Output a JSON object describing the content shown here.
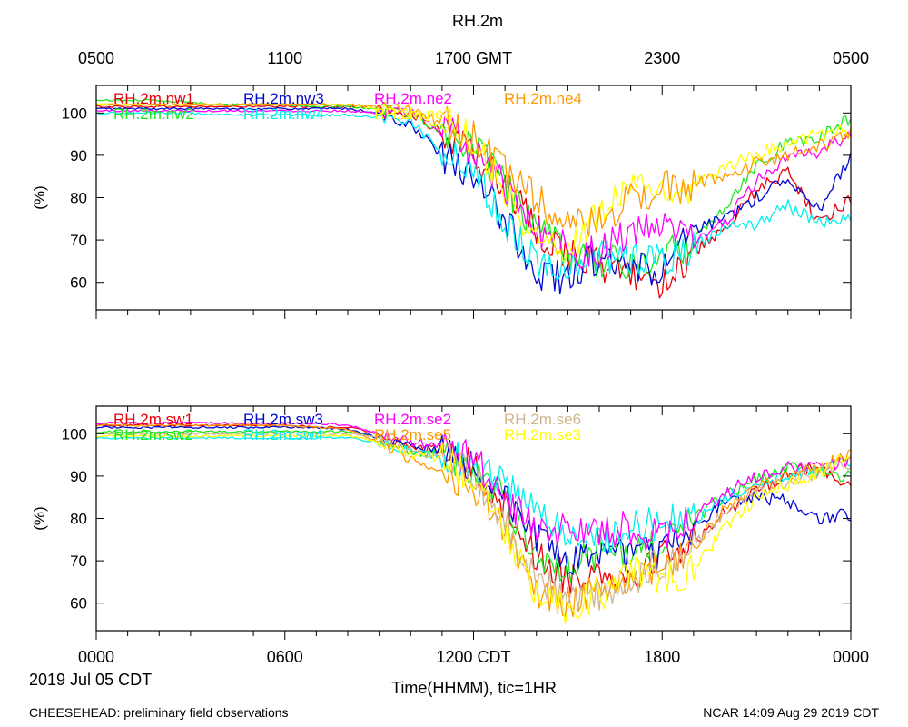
{
  "colors": {
    "axis": "#000000",
    "red": "#e8000b",
    "green": "#1ee81e",
    "blue": "#0008d0",
    "cyan": "#00f0f0",
    "magenta": "#ff00ff",
    "yellow": "#ffff00",
    "orange": "#ff9900",
    "tan": "#d2b48c"
  },
  "figure": {
    "title": "RH.2m",
    "xlabel": "Time(HHMM), tic=1HR",
    "date_label": "2019 Jul 05 CDT",
    "footer_left": "CHEESEHEAD: preliminary field observations",
    "footer_right": "NCAR 14:09 Aug 29 2019 CDT",
    "top_ticks": [
      {
        "hour": 0,
        "label": "0500"
      },
      {
        "hour": 6,
        "label": "1100"
      },
      {
        "hour": 12,
        "label": "1700 GMT"
      },
      {
        "hour": 18,
        "label": "2300"
      },
      {
        "hour": 24,
        "label": "0500"
      }
    ],
    "bottom_ticks": [
      {
        "hour": 0,
        "label": "0000"
      },
      {
        "hour": 6,
        "label": "0600"
      },
      {
        "hour": 12,
        "label": "1200 CDT"
      },
      {
        "hour": 18,
        "label": "1800"
      },
      {
        "hour": 24,
        "label": "0000"
      }
    ]
  },
  "chart_data": [
    {
      "type": "line",
      "panel": "top",
      "title": "RH.2m",
      "ylabel": "(%)",
      "xlim": [
        0,
        24
      ],
      "ylim": [
        53.5,
        106.5
      ],
      "yticks": [
        60,
        70,
        80,
        90,
        100
      ],
      "x": [
        0,
        1,
        2,
        3,
        4,
        5,
        6,
        7,
        8,
        9,
        10,
        11,
        12,
        13,
        14,
        15,
        16,
        17,
        18,
        19,
        20,
        21,
        22,
        23,
        24
      ],
      "series": [
        {
          "name": "RH.2m.nw1",
          "color": "red",
          "values": [
            101.5,
            101.5,
            101.5,
            101.5,
            101.5,
            101.5,
            101.5,
            101.5,
            101.5,
            101,
            100,
            95,
            90,
            83,
            72,
            67,
            64,
            62,
            60,
            67,
            72,
            82,
            86,
            74,
            80
          ]
        },
        {
          "name": "RH.2m.nw2",
          "color": "green",
          "values": [
            103,
            103,
            103,
            102.5,
            102,
            102,
            102,
            101.5,
            101.5,
            101,
            100,
            96,
            92,
            83,
            72,
            67,
            65,
            64,
            66,
            70,
            78,
            88,
            93,
            94,
            99
          ]
        },
        {
          "name": "RH.2m.nw3",
          "color": "blue",
          "values": [
            101,
            101,
            101,
            101,
            101,
            101,
            101,
            101,
            101,
            100,
            97,
            90,
            84,
            75,
            62,
            61,
            66,
            63,
            63,
            72,
            75,
            80,
            85,
            77,
            90
          ]
        },
        {
          "name": "RH.2m.nw4",
          "color": "cyan",
          "values": [
            100,
            100,
            100,
            100,
            99.5,
            99.5,
            99.5,
            99.5,
            99.5,
            99,
            98,
            91,
            87,
            74,
            65,
            64,
            66,
            66,
            65,
            68,
            73,
            74,
            78,
            74,
            76
          ]
        },
        {
          "name": "RH.2m.ne2",
          "color": "magenta",
          "values": [
            100.5,
            100.5,
            100.5,
            100.5,
            100.5,
            100.5,
            100.5,
            100.5,
            100.5,
            100,
            100,
            96,
            92,
            82,
            73,
            68,
            67,
            72,
            73,
            70,
            74,
            84,
            89,
            91,
            95
          ]
        },
        {
          "name": "RH.2m.ne3",
          "color": "yellow",
          "values": [
            102,
            102,
            102,
            102,
            102,
            102,
            102,
            102,
            102,
            101,
            100,
            97,
            94,
            82,
            70,
            68,
            76,
            84,
            80,
            83,
            87,
            90,
            93,
            95,
            96
          ]
        },
        {
          "name": "RH.2m.ne4",
          "color": "orange",
          "values": [
            102,
            102,
            102,
            102,
            102,
            102,
            102,
            102,
            102,
            101.5,
            101,
            98,
            94,
            86,
            80,
            73,
            74,
            80,
            82,
            83,
            85,
            88,
            90,
            92,
            95
          ]
        }
      ]
    },
    {
      "type": "line",
      "panel": "bottom",
      "title": "",
      "ylabel": "(%)",
      "xlim": [
        0,
        24
      ],
      "ylim": [
        53.5,
        106.5
      ],
      "yticks": [
        60,
        70,
        80,
        90,
        100
      ],
      "x": [
        0,
        1,
        2,
        3,
        4,
        5,
        6,
        7,
        8,
        9,
        10,
        11,
        12,
        13,
        14,
        15,
        16,
        17,
        18,
        19,
        20,
        21,
        22,
        23,
        24
      ],
      "series": [
        {
          "name": "RH.2m.sw1",
          "color": "red",
          "values": [
            102,
            102,
            102,
            102,
            102,
            102,
            102,
            101.5,
            101.5,
            100,
            97,
            96,
            92,
            83,
            71,
            66,
            68,
            66,
            72,
            74,
            82,
            86,
            91,
            92,
            88
          ]
        },
        {
          "name": "RH.2m.sw2",
          "color": "green",
          "values": [
            100.5,
            100.5,
            100.5,
            100.5,
            100.5,
            100.5,
            100.5,
            100.5,
            100.5,
            99,
            96,
            95,
            92,
            84,
            72,
            68,
            72,
            72,
            74,
            80,
            85,
            89,
            92,
            91,
            90
          ]
        },
        {
          "name": "RH.2m.sw3",
          "color": "blue",
          "values": [
            101.5,
            101.5,
            101.5,
            101.5,
            101.5,
            101.5,
            101.5,
            101.5,
            101,
            99,
            97,
            96,
            92,
            86,
            75,
            70,
            70,
            72,
            72,
            78,
            84,
            85,
            84,
            80,
            81
          ]
        },
        {
          "name": "RH.2m.sw4",
          "color": "cyan",
          "values": [
            99,
            99,
            99,
            99,
            99,
            99,
            99,
            99,
            99,
            98,
            96,
            95,
            93,
            88,
            82,
            76,
            75,
            78,
            79,
            80,
            85,
            87,
            90,
            92,
            93
          ]
        },
        {
          "name": "RH.2m.se2",
          "color": "magenta",
          "values": [
            102.5,
            102.5,
            102.5,
            102.5,
            102.5,
            102.5,
            102.5,
            102.5,
            102,
            100,
            98,
            97,
            94,
            85,
            77,
            78,
            76,
            78,
            75,
            80,
            86,
            90,
            92,
            92,
            94
          ]
        },
        {
          "name": "RH.2m.se5",
          "color": "orange",
          "values": [
            102,
            102,
            102,
            102,
            102,
            102,
            102,
            101.5,
            101,
            98,
            94,
            91,
            88,
            78,
            63,
            60,
            63,
            66,
            68,
            73,
            82,
            87,
            90,
            92,
            95
          ]
        },
        {
          "name": "RH.2m.se6",
          "color": "tan",
          "values": [
            100,
            100,
            100,
            100,
            100,
            100,
            100,
            100,
            100,
            99,
            96,
            95,
            90,
            80,
            65,
            62,
            62,
            65,
            70,
            74,
            82,
            86,
            89,
            91,
            93
          ]
        },
        {
          "name": "RH.2m.se3",
          "color": "yellow",
          "values": [
            99.5,
            99.5,
            99.5,
            99.5,
            99.5,
            99.5,
            99.5,
            99.5,
            99.5,
            98,
            95,
            94,
            90,
            78,
            62,
            59,
            62,
            67,
            66,
            68,
            78,
            85,
            88,
            91,
            95
          ]
        }
      ]
    }
  ]
}
